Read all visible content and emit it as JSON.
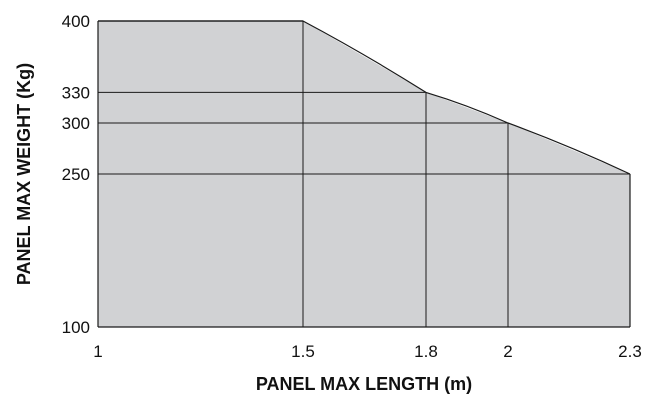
{
  "chart_data": {
    "type": "area",
    "title": "",
    "xlabel": "PANEL MAX LENGTH (m)",
    "ylabel": "PANEL MAX WEIGHT (Kg)",
    "x_ticks": [
      1,
      1.5,
      1.8,
      2,
      2.3
    ],
    "y_ticks": [
      100,
      250,
      300,
      330,
      400
    ],
    "xlim": [
      1,
      2.3
    ],
    "ylim": [
      100,
      400
    ],
    "grid": true,
    "legend": "none",
    "series": [
      {
        "x": [
          1,
          1.5,
          1.8,
          2,
          2.3
        ],
        "values": [
          400,
          400,
          330,
          300,
          250
        ]
      }
    ],
    "colors": {
      "fill": "#d1d2d4",
      "line": "#1a1a1a"
    }
  }
}
